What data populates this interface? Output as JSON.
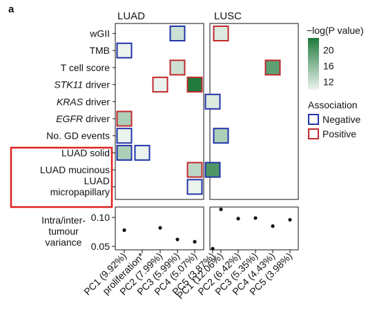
{
  "panel_letter": "a",
  "legend": {
    "scale_title": "−log(P value)",
    "scale_ticks": [
      20,
      16,
      12
    ],
    "scale_range": [
      10,
      23
    ],
    "color_low": "#ecf3ee",
    "color_high": "#1f7a3c",
    "assoc_title": "Association",
    "assoc_items": [
      {
        "label": "Negative",
        "color": "#2233aa"
      },
      {
        "label": "Positive",
        "color": "#c0282d"
      }
    ]
  },
  "highlight_color": "#e02020",
  "rows": [
    {
      "label": "wGII",
      "italic": "",
      "rest": "",
      "blue": false
    },
    {
      "label": "TMB",
      "italic": "",
      "rest": "",
      "blue": false
    },
    {
      "label": "T cell score",
      "italic": "",
      "rest": "",
      "blue": false
    },
    {
      "label": "",
      "italic": "STK11",
      "rest": " driver",
      "blue": false
    },
    {
      "label": "",
      "italic": "KRAS",
      "rest": " driver",
      "blue": false
    },
    {
      "label": "",
      "italic": "EGFR",
      "rest": " driver",
      "blue": false
    },
    {
      "label": "No. GD events",
      "italic": "",
      "rest": "",
      "blue": false
    },
    {
      "label": "LUAD solid",
      "italic": "",
      "rest": "",
      "blue": true
    },
    {
      "label": "LUAD mucinous",
      "italic": "",
      "rest": "",
      "blue": true
    },
    {
      "label": "LUAD",
      "label2": "micropapillary",
      "italic": "",
      "rest": "",
      "blue": true
    }
  ],
  "row_label_blue_color": "#3a78c0",
  "chart_data": [
    {
      "type": "heatmap",
      "title": "LUAD",
      "columns": [
        "PC1 (9.92%)",
        "proliferation*",
        "PC2 (7.99%)",
        "PC3 (5.99%)",
        "PC4 (5.07%)",
        "PC5 (3.87%)"
      ],
      "x_tick_labels": [
        "PC1 (9.92%)",
        "proliferation*",
        "PC2 (7.99%)",
        "PC3 (5.99%)",
        "PC4 (5.07%)",
        "PC5 (3.87%)"
      ],
      "cells": [
        {
          "row": "wGII",
          "col": 3,
          "neglogp": 12,
          "association": "Negative"
        },
        {
          "row": "TMB",
          "col": 0,
          "neglogp": 10,
          "association": "Negative"
        },
        {
          "row": "T cell score",
          "col": 3,
          "neglogp": 12,
          "association": "Positive"
        },
        {
          "row": "STK11 driver",
          "col": 2,
          "neglogp": 10,
          "association": "Positive"
        },
        {
          "row": "STK11 driver",
          "col": 4,
          "neglogp": 23,
          "association": "Positive"
        },
        {
          "row": "KRAS driver",
          "col": 5,
          "neglogp": 11,
          "association": "Negative"
        },
        {
          "row": "EGFR driver",
          "col": 0,
          "neglogp": 14,
          "association": "Positive"
        },
        {
          "row": "No. GD events",
          "col": 0,
          "neglogp": 10,
          "association": "Negative"
        },
        {
          "row": "LUAD solid",
          "col": 0,
          "neglogp": 14,
          "association": "Negative"
        },
        {
          "row": "LUAD solid",
          "col": 1,
          "neglogp": 10,
          "association": "Negative"
        },
        {
          "row": "LUAD mucinous",
          "col": 4,
          "neglogp": 13,
          "association": "Positive"
        },
        {
          "row": "LUAD mucinous",
          "col": 5,
          "neglogp": 20,
          "association": "Negative"
        },
        {
          "row": "LUAD micropapillary",
          "col": 4,
          "neglogp": 10,
          "association": "Negative"
        }
      ]
    },
    {
      "type": "heatmap",
      "title": "LUSC",
      "columns": [
        "PC1 (12.06%)",
        "PC2 (6.42%)",
        "PC3 (5.35%)",
        "PC4 (4.43%)",
        "PC5 (3.98%)"
      ],
      "x_tick_labels": [
        "PC1 (12.06%)",
        "PC2 (6.42%)",
        "PC3 (5.35%)",
        "PC4 (4.43%)",
        "PC5 (3.98%)"
      ],
      "cells": [
        {
          "row": "wGII",
          "col": 0,
          "neglogp": 11,
          "association": "Positive"
        },
        {
          "row": "T cell score",
          "col": 3,
          "neglogp": 19,
          "association": "Positive"
        },
        {
          "row": "No. GD events",
          "col": 0,
          "neglogp": 14,
          "association": "Negative"
        }
      ]
    },
    {
      "type": "scatter",
      "panel": "LUAD",
      "ylabel_lines": [
        "Intra/inter-",
        "tumour",
        "variance"
      ],
      "yticks": [
        "0.10",
        "0.05"
      ],
      "ytick_values": [
        0.1,
        0.05
      ],
      "ylim": [
        0.044,
        0.118
      ],
      "x": [
        "PC1 (9.92%)",
        "proliferation*",
        "PC2 (7.99%)",
        "PC3 (5.99%)",
        "PC4 (5.07%)",
        "PC5 (3.87%)"
      ],
      "points": [
        {
          "col": 0,
          "value": 0.078
        },
        {
          "col": 2,
          "value": 0.082
        },
        {
          "col": 3,
          "value": 0.062
        },
        {
          "col": 4,
          "value": 0.058
        },
        {
          "col": 5,
          "value": 0.046
        }
      ]
    },
    {
      "type": "scatter",
      "panel": "LUSC",
      "ylim": [
        0.044,
        0.118
      ],
      "x": [
        "PC1 (12.06%)",
        "PC2 (6.42%)",
        "PC3 (5.35%)",
        "PC4 (4.43%)",
        "PC5 (3.98%)"
      ],
      "points": [
        {
          "col": 0,
          "value": 0.114
        },
        {
          "col": 1,
          "value": 0.098
        },
        {
          "col": 2,
          "value": 0.099
        },
        {
          "col": 3,
          "value": 0.085
        },
        {
          "col": 4,
          "value": 0.096
        }
      ]
    }
  ]
}
